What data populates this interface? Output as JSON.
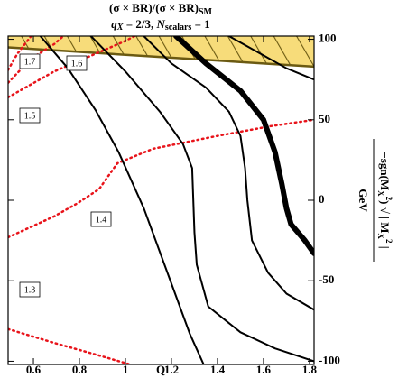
{
  "chart_data": {
    "type": "contour",
    "title": {
      "main": "(σ × BR)/(σ × BR)",
      "sub": "SM"
    },
    "subtitle": {
      "q": "q",
      "q_sub": "X",
      "q_rest": " = 2/3, ",
      "n": "N",
      "n_sub": "scalars",
      "n_rest": " = 1"
    },
    "xlabel": "Q",
    "ylabel": {
      "numerator": [
        {
          "t": "−sgn(M"
        },
        {
          "t": "X",
          "shift": "sub"
        },
        {
          "t": "2",
          "shift": "super"
        },
        {
          "t": ") √ | M"
        },
        {
          "t": "X",
          "shift": "sub"
        },
        {
          "t": "2",
          "shift": "super"
        },
        {
          "t": " |"
        }
      ],
      "denominator": "GeV"
    },
    "xlim": [
      0.49,
      1.82
    ],
    "ylim": [
      -102,
      102
    ],
    "xticks": [
      0.6,
      0.8,
      1.0,
      1.2,
      1.4,
      1.6,
      1.8
    ],
    "yticks": [
      100,
      50,
      0,
      -50,
      -100
    ],
    "y_axis_side": "right",
    "band": {
      "color": "#f7dc7a",
      "edge_color": "#6b5a12",
      "x": [
        0.49,
        1.82
      ],
      "y_lower": [
        95,
        83
      ]
    },
    "contours": [
      {
        "level": 1.3,
        "color": "#e8141b",
        "style": "dotted",
        "width": 2.5,
        "x": [
          0.49,
          0.7,
          0.9,
          1.02
        ],
        "y": [
          -80,
          -89,
          -97,
          -102
        ]
      },
      {
        "level": 1.4,
        "color": "#e8141b",
        "style": "dotted",
        "width": 2.5,
        "x": [
          0.49,
          0.69,
          0.79,
          0.886,
          0.925,
          0.965,
          1.12,
          1.4,
          1.63,
          1.82
        ],
        "y": [
          -23,
          -10,
          -2,
          7,
          15,
          23,
          32,
          40,
          46,
          50
        ]
      },
      {
        "level": 1.5,
        "color": "#e8141b",
        "style": "dotted",
        "width": 2.5,
        "x": [
          0.49,
          0.69,
          0.886,
          1.0,
          1.04
        ],
        "y": [
          64,
          80,
          92,
          99,
          102
        ]
      },
      {
        "level": 1.6,
        "color": "#e8141b",
        "style": "dotted",
        "width": 2.5,
        "x": [
          0.49,
          0.59,
          0.69,
          0.73
        ],
        "y": [
          73,
          88,
          97,
          102
        ]
      },
      {
        "level": 1.7,
        "color": "#e8141b",
        "style": "dotted",
        "width": 2.5,
        "x": [
          0.49,
          0.53,
          0.59
        ],
        "y": [
          81,
          91,
          102
        ]
      },
      {
        "color": "#000000",
        "style": "solid",
        "width": 2,
        "x": [
          0.63,
          0.75,
          0.87,
          0.97,
          1.08,
          1.18,
          1.28,
          1.34
        ],
        "y": [
          102,
          82,
          56,
          30,
          -5,
          -44,
          -83,
          -102
        ]
      },
      {
        "color": "#000000",
        "style": "solid",
        "width": 2,
        "x": [
          0.85,
          1.0,
          1.15,
          1.25,
          1.29,
          1.295,
          1.3,
          1.31,
          1.36,
          1.5,
          1.65,
          1.82
        ],
        "y": [
          102,
          80,
          55,
          35,
          20,
          0,
          -20,
          -40,
          -66,
          -82,
          -92,
          -100
        ]
      },
      {
        "color": "#000000",
        "style": "solid",
        "width": 2,
        "x": [
          1.08,
          1.2,
          1.35,
          1.45,
          1.5,
          1.52,
          1.53,
          1.55,
          1.62,
          1.7,
          1.82
        ],
        "y": [
          102,
          85,
          70,
          55,
          40,
          20,
          0,
          -25,
          -45,
          -58,
          -68
        ]
      },
      {
        "color": "#000000",
        "style": "solid",
        "width": 6,
        "x": [
          1.22,
          1.35,
          1.5,
          1.6,
          1.65,
          1.68,
          1.7,
          1.72,
          1.78,
          1.82
        ],
        "y": [
          102,
          85,
          68,
          50,
          30,
          10,
          -5,
          -15,
          -25,
          -33
        ]
      },
      {
        "color": "#000000",
        "style": "solid",
        "width": 2,
        "x": [
          1.45,
          1.5,
          1.6,
          1.7,
          1.82
        ],
        "y": [
          102,
          98,
          90,
          82,
          75
        ]
      }
    ]
  }
}
